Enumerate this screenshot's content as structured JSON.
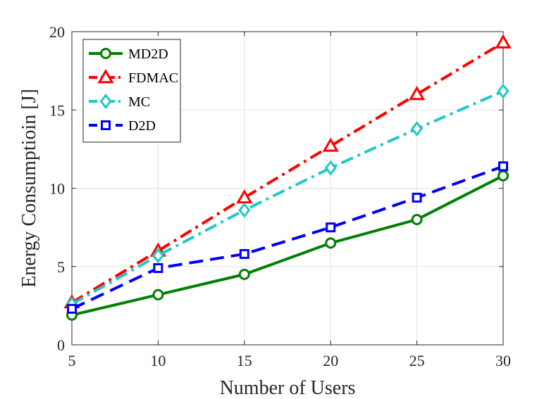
{
  "chart_data": {
    "type": "line",
    "title": "",
    "xlabel": "Number of Users",
    "ylabel": "Energy Consumptioin [J]",
    "x": [
      5,
      10,
      15,
      20,
      25,
      30
    ],
    "xlim": [
      5,
      30
    ],
    "ylim": [
      0,
      20
    ],
    "xticks": [
      "5",
      "10",
      "15",
      "20",
      "25",
      "30"
    ],
    "yticks": [
      "0",
      "5",
      "10",
      "15",
      "20"
    ],
    "grid": true,
    "legend_position": "top-left",
    "series": [
      {
        "name": "MD2D",
        "values": [
          1.9,
          3.2,
          4.5,
          6.5,
          8.0,
          10.8
        ],
        "color": "#008000",
        "marker": "circle",
        "line_style": "solid"
      },
      {
        "name": "FDMAC",
        "values": [
          2.7,
          6.0,
          9.4,
          12.7,
          16.0,
          19.3
        ],
        "color": "#ff0000",
        "marker": "triangle",
        "line_style": "dashdot"
      },
      {
        "name": "MC",
        "values": [
          2.6,
          5.7,
          8.6,
          11.3,
          13.8,
          16.2
        ],
        "color": "#22c7c7",
        "marker": "diamond",
        "line_style": "dashdot"
      },
      {
        "name": "D2D",
        "values": [
          2.3,
          4.9,
          5.8,
          7.5,
          9.4,
          11.4
        ],
        "color": "#0000ff",
        "marker": "square",
        "line_style": "dashed"
      }
    ]
  }
}
